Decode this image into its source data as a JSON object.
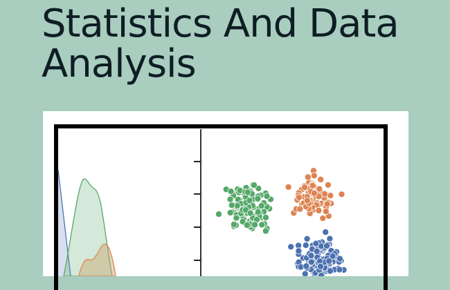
{
  "title": {
    "line1": "Statistics And Data",
    "line2": "Analysis"
  },
  "colors": {
    "background": "#a9cdbf",
    "title": "#0e1e24",
    "blue": "#4c72b0",
    "orange": "#dd8452",
    "green": "#55a868"
  },
  "chart_data": [
    {
      "type": "area",
      "title": "",
      "description": "Kernel density estimate plot (partial, cropped)",
      "series": [
        {
          "name": "blue",
          "color": "#4c72b0"
        },
        {
          "name": "green",
          "color": "#55a868"
        },
        {
          "name": "orange",
          "color": "#dd8452"
        }
      ],
      "xlabel": "",
      "ylabel": ""
    },
    {
      "type": "scatter",
      "title": "",
      "description": "Three-cluster scatter plot (partial, cropped)",
      "series": [
        {
          "name": "green",
          "color": "#55a868",
          "cluster": "upper-left"
        },
        {
          "name": "orange",
          "color": "#dd8452",
          "cluster": "upper-right"
        },
        {
          "name": "blue",
          "color": "#4c72b0",
          "cluster": "lower-right"
        }
      ],
      "y_ticks_visible": 4,
      "xlabel": "",
      "ylabel": ""
    }
  ]
}
